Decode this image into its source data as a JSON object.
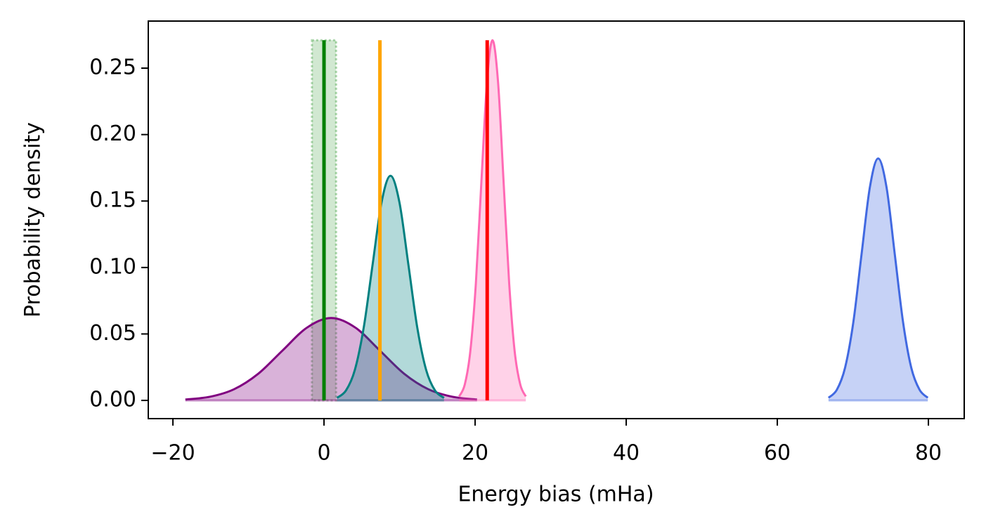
{
  "chart_data": {
    "type": "area",
    "x_label": "Energy bias (mHa)",
    "y_label": "Probability density",
    "xlim": [
      -23.26,
      84.74
    ],
    "ylim": [
      -0.0137,
      0.2854
    ],
    "xticks": [
      {
        "value": -20,
        "label": "−20"
      },
      0,
      20,
      40,
      60,
      80
    ],
    "yticks": [
      {
        "value": 0,
        "label": "0.00"
      },
      {
        "value": 0.05,
        "label": "0.05"
      },
      {
        "value": 0.1,
        "label": "0.10"
      },
      {
        "value": 0.15,
        "label": "0.15"
      },
      {
        "value": 0.2,
        "label": "0.20"
      },
      {
        "value": 0.25,
        "label": "0.25"
      }
    ],
    "series": [
      {
        "color": "#800080",
        "x": [
          -18.35,
          -15.13,
          -11.91,
          -8.7,
          -5.48,
          -2.27,
          0.95,
          4.17,
          7.38,
          10.6,
          13.81,
          17.03,
          20.25
        ],
        "values": [
          0.0007,
          0.0027,
          0.0084,
          0.0201,
          0.0376,
          0.0547,
          0.062,
          0.0547,
          0.0376,
          0.0201,
          0.0084,
          0.0027,
          0.0007
        ]
      },
      {
        "color": "#008080",
        "x": [
          1.72,
          2.9,
          4.08,
          5.26,
          6.44,
          7.62,
          8.8,
          9.98,
          11.16,
          12.34,
          13.52,
          14.7,
          15.88
        ],
        "values": [
          0.0019,
          0.0074,
          0.0229,
          0.0549,
          0.1025,
          0.1491,
          0.169,
          0.1491,
          0.1025,
          0.0549,
          0.0229,
          0.0074,
          0.0019
        ]
      },
      {
        "color": "#ff69b4",
        "x": [
          17.89,
          18.63,
          19.36,
          20.1,
          20.83,
          21.57,
          22.3,
          23.04,
          23.77,
          24.51,
          25.24,
          25.98,
          26.71
        ],
        "values": [
          0.003,
          0.0119,
          0.0367,
          0.088,
          0.1644,
          0.2392,
          0.271,
          0.2392,
          0.1644,
          0.088,
          0.0367,
          0.0119,
          0.003
        ]
      },
      {
        "color": "#4169e1",
        "x": [
          66.78,
          67.88,
          68.97,
          70.07,
          71.16,
          72.26,
          73.35,
          74.45,
          75.54,
          76.64,
          77.73,
          78.83,
          79.92
        ],
        "values": [
          0.002,
          0.008,
          0.0246,
          0.0591,
          0.1104,
          0.1606,
          0.182,
          0.1606,
          0.1104,
          0.0591,
          0.0246,
          0.008,
          0.002
        ]
      }
    ],
    "band": {
      "x": [
        -1.6,
        1.6
      ],
      "ymax": 0.271,
      "color": "#008000"
    },
    "vlines": [
      {
        "x": 0,
        "ymax": 0.271,
        "color": "#008000"
      },
      {
        "x": 7.4,
        "ymax": 0.271,
        "color": "#ffa500"
      },
      {
        "x": 21.6,
        "ymax": 0.271,
        "color": "#ff0000"
      }
    ]
  }
}
